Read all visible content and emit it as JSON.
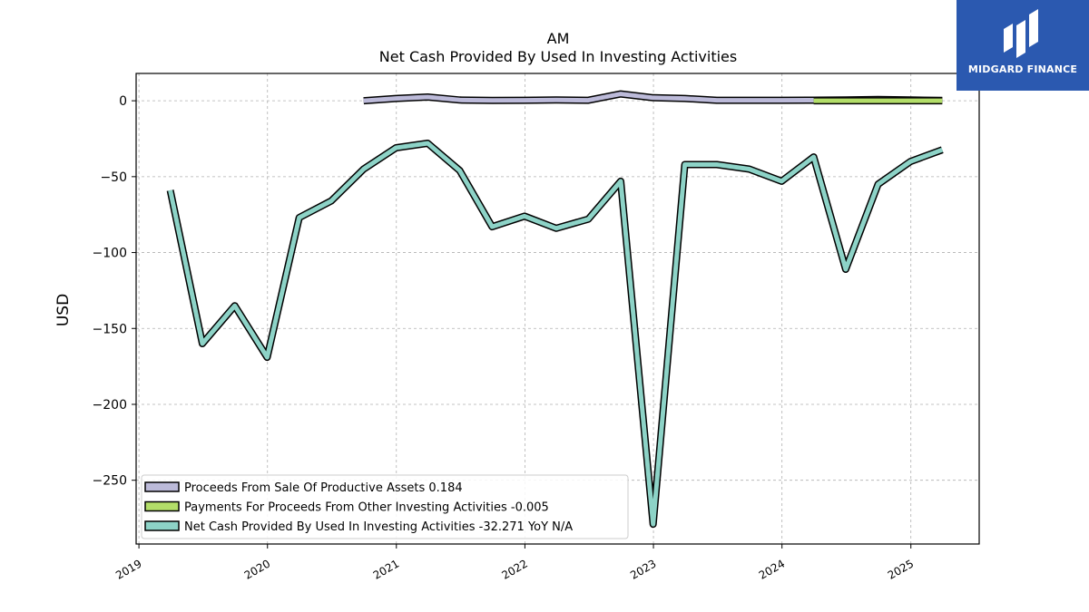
{
  "logo": {
    "text": "MIDGARD FINANCE",
    "bg_color": "#2b59b0"
  },
  "chart_data": {
    "type": "line",
    "title": "AM",
    "subtitle": "Net Cash Provided By Used In Investing Activities",
    "ylabel": "USD",
    "xlabel": "",
    "x_ticks": [
      "2019",
      "2020",
      "2021",
      "2022",
      "2023",
      "2024",
      "2025"
    ],
    "y_ticks": [
      0,
      -50,
      -100,
      -150,
      -200,
      -250
    ],
    "xlim": [
      "2018-12-24",
      "2025-07-14"
    ],
    "ylim": [
      -292,
      18
    ],
    "grid": true,
    "legend_position": "lower-left",
    "series": [
      {
        "name": "Proceeds From Sale Of Productive Assets",
        "legend_label": "Proceeds From Sale Of Productive Assets  0.184",
        "color": "#bcbad9",
        "points": [
          [
            "2020-09-30",
            0.0
          ],
          [
            "2020-12-31",
            1.5
          ],
          [
            "2021-03-31",
            2.5
          ],
          [
            "2021-06-30",
            0.5
          ],
          [
            "2021-09-30",
            0.2
          ],
          [
            "2021-12-31",
            0.3
          ],
          [
            "2022-03-31",
            0.5
          ],
          [
            "2022-06-30",
            0.3
          ],
          [
            "2022-09-30",
            4.5
          ],
          [
            "2022-12-31",
            2.0
          ],
          [
            "2023-03-31",
            1.5
          ],
          [
            "2023-06-30",
            0.3
          ],
          [
            "2023-09-30",
            0.3
          ],
          [
            "2023-12-31",
            0.3
          ],
          [
            "2024-03-31",
            0.4
          ],
          [
            "2024-06-30",
            0.5
          ],
          [
            "2024-09-30",
            0.8
          ],
          [
            "2024-12-31",
            0.5
          ],
          [
            "2025-03-31",
            0.184
          ]
        ]
      },
      {
        "name": "Payments For Proceeds From Other Investing Activities",
        "legend_label": "Payments For Proceeds From Other Investing Activities  -0.005",
        "color": "#b3de69",
        "points": [
          [
            "2024-03-31",
            0.0
          ],
          [
            "2024-06-30",
            0.0
          ],
          [
            "2024-09-30",
            0.0
          ],
          [
            "2024-12-31",
            0.0
          ],
          [
            "2025-03-31",
            -0.005
          ]
        ]
      },
      {
        "name": "Net Cash Provided By Used In Investing Activities",
        "legend_label": "Net Cash Provided By Used In Investing Activities  -32.271 YoY N/A",
        "color": "#8dd3c7",
        "points": [
          [
            "2019-03-31",
            -59
          ],
          [
            "2019-06-30",
            -160
          ],
          [
            "2019-09-30",
            -135
          ],
          [
            "2019-12-31",
            -169
          ],
          [
            "2020-03-31",
            -77
          ],
          [
            "2020-06-30",
            -66
          ],
          [
            "2020-09-30",
            -45
          ],
          [
            "2020-12-31",
            -31
          ],
          [
            "2021-03-31",
            -28
          ],
          [
            "2021-06-30",
            -46
          ],
          [
            "2021-09-30",
            -83
          ],
          [
            "2021-12-31",
            -76
          ],
          [
            "2022-03-31",
            -84
          ],
          [
            "2022-06-30",
            -78
          ],
          [
            "2022-09-30",
            -53
          ],
          [
            "2022-12-31",
            -279
          ],
          [
            "2023-03-31",
            -42
          ],
          [
            "2023-06-30",
            -42
          ],
          [
            "2023-09-30",
            -45
          ],
          [
            "2023-12-31",
            -53
          ],
          [
            "2024-03-31",
            -37
          ],
          [
            "2024-06-30",
            -111
          ],
          [
            "2024-09-30",
            -55
          ],
          [
            "2024-12-31",
            -40
          ],
          [
            "2025-03-31",
            -32.271
          ]
        ]
      }
    ]
  }
}
